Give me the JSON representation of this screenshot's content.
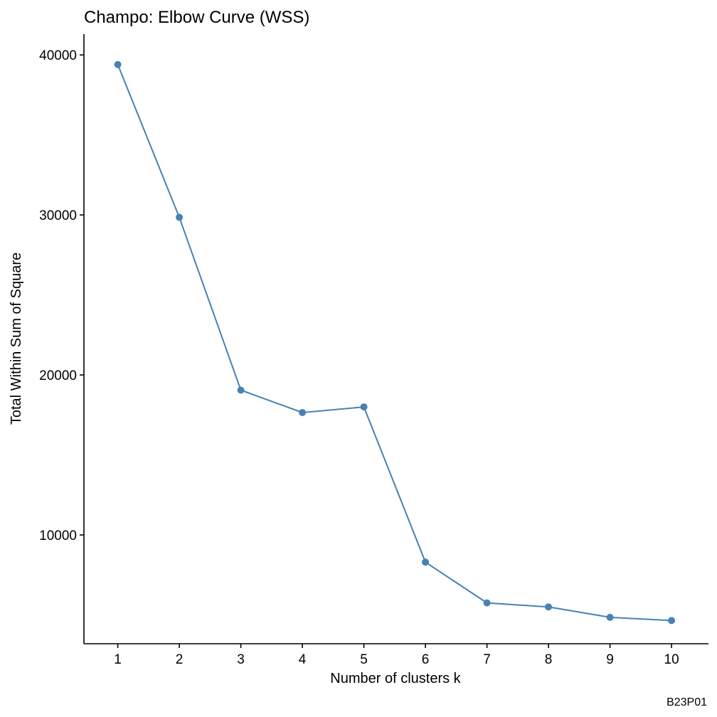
{
  "chart_data": {
    "type": "line",
    "title": "Champo: Elbow Curve (WSS)",
    "xlabel": "Number of clusters k",
    "ylabel": "Total Within Sum of Square",
    "caption": "B23P01",
    "x": [
      1,
      2,
      3,
      4,
      5,
      6,
      7,
      8,
      9,
      10
    ],
    "categories": [
      "1",
      "2",
      "3",
      "4",
      "5",
      "6",
      "7",
      "8",
      "9",
      "10"
    ],
    "series": [
      {
        "values": [
          39400,
          29850,
          19050,
          17650,
          18000,
          8300,
          5750,
          5500,
          4850,
          4650
        ]
      }
    ],
    "yticks": [
      10000,
      20000,
      30000,
      40000
    ],
    "ytick_labels": [
      "10000",
      "20000",
      "30000",
      "40000"
    ],
    "ylim": [
      3200,
      41300
    ],
    "xlim": [
      0.45,
      10.6
    ],
    "grid": false,
    "legend": "none",
    "line_color": "#4682B4",
    "point_color": "#4682B4",
    "axis_color": "#000000"
  }
}
